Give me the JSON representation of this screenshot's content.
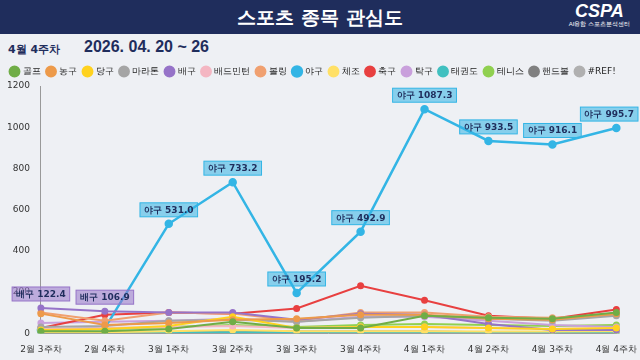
{
  "header": {
    "logo": "CSPA",
    "logo_caption": "AI융합 스포츠분석센터"
  },
  "chart_data": {
    "type": "line",
    "title": "스포츠 종목 관심도",
    "period": "4월 4주차",
    "subtitle": "2026. 04. 20 ~ 26",
    "categories": [
      "2월 3주차",
      "2월 4주차",
      "3월 1주차",
      "3월 2주차",
      "3월 3주차",
      "3월 4주차",
      "4월 1주차",
      "4월 2주차",
      "4월 3주차",
      "4월 4주차"
    ],
    "series": [
      {
        "name": "골프",
        "color": "#70ad47",
        "values": [
          10,
          10,
          20,
          55,
          25,
          25,
          85,
          75,
          70,
          100
        ]
      },
      {
        "name": "농구",
        "color": "#ed9a4a",
        "values": [
          95,
          40,
          50,
          65,
          70,
          90,
          90,
          70,
          65,
          95
        ]
      },
      {
        "name": "당구",
        "color": "#ffd21f",
        "values": [
          15,
          20,
          35,
          80,
          25,
          30,
          30,
          25,
          20,
          25
        ]
      },
      {
        "name": "마라톤",
        "color": "#a5a5a5",
        "values": [
          30,
          35,
          60,
          65,
          55,
          75,
          85,
          70,
          60,
          85
        ]
      },
      {
        "name": "배구",
        "color": "#9673c8",
        "values": [
          122.4,
          106.9,
          100,
          100,
          65,
          95,
          90,
          45,
          15,
          15
        ]
      },
      {
        "name": "배드민턴",
        "color": "#f4b6c2",
        "values": [
          20,
          25,
          30,
          35,
          25,
          30,
          30,
          25,
          20,
          25
        ]
      },
      {
        "name": "볼링",
        "color": "#f0a070",
        "values": [
          100,
          60,
          100,
          95,
          60,
          100,
          100,
          80,
          75,
          90
        ]
      },
      {
        "name": "야구",
        "color": "#33b5e5",
        "values": [
          15,
          25,
          531.0,
          733.2,
          195.2,
          492.9,
          1087.3,
          933.5,
          916.1,
          995.7
        ]
      },
      {
        "name": "체조",
        "color": "#ffe066",
        "values": [
          5,
          5,
          10,
          15,
          10,
          10,
          10,
          8,
          8,
          10
        ]
      },
      {
        "name": "축구",
        "color": "#e84040",
        "values": [
          25,
          90,
          100,
          95,
          120,
          230,
          160,
          85,
          70,
          115
        ]
      },
      {
        "name": "탁구",
        "color": "#c9a0dc",
        "values": [
          50,
          55,
          60,
          70,
          55,
          80,
          80,
          60,
          40,
          30
        ]
      },
      {
        "name": "태권도",
        "color": "#40c0c0",
        "values": [
          5,
          5,
          5,
          5,
          5,
          5,
          5,
          5,
          5,
          5
        ]
      },
      {
        "name": "테니스",
        "color": "#90d050",
        "values": [
          15,
          20,
          30,
          40,
          30,
          40,
          45,
          40,
          35,
          40
        ]
      },
      {
        "name": "핸드볼",
        "color": "#808080",
        "values": [
          5,
          5,
          5,
          10,
          8,
          8,
          8,
          5,
          5,
          5
        ]
      },
      {
        "name": "#REF!",
        "color": "#b0b0b0",
        "values": [
          0,
          0,
          0,
          0,
          0,
          0,
          0,
          0,
          0,
          0
        ]
      }
    ],
    "annotations": [
      {
        "series": "배구",
        "category": "2월 3주차",
        "label": "배구 122.4"
      },
      {
        "series": "배구",
        "category": "2월 4주차",
        "label": "배구 106.9"
      },
      {
        "series": "야구",
        "category": "3월 1주차",
        "label": "야구 531.0"
      },
      {
        "series": "야구",
        "category": "3월 2주차",
        "label": "야구 733.2"
      },
      {
        "series": "야구",
        "category": "3월 3주차",
        "label": "야구 195.2"
      },
      {
        "series": "야구",
        "category": "3월 4주차",
        "label": "야구 492.9"
      },
      {
        "series": "야구",
        "category": "4월 1주차",
        "label": "야구 1087.3"
      },
      {
        "series": "야구",
        "category": "4월 2주차",
        "label": "야구 933.5"
      },
      {
        "series": "야구",
        "category": "4월 3주차",
        "label": "야구 916.1"
      },
      {
        "series": "야구",
        "category": "4월 4주차",
        "label": "야구 995.7"
      }
    ],
    "ylim": [
      0,
      1200
    ],
    "yticks": [
      0,
      200,
      400,
      600,
      800,
      1000,
      1200
    ],
    "grid": false,
    "legend": "top",
    "marker": "circle"
  }
}
